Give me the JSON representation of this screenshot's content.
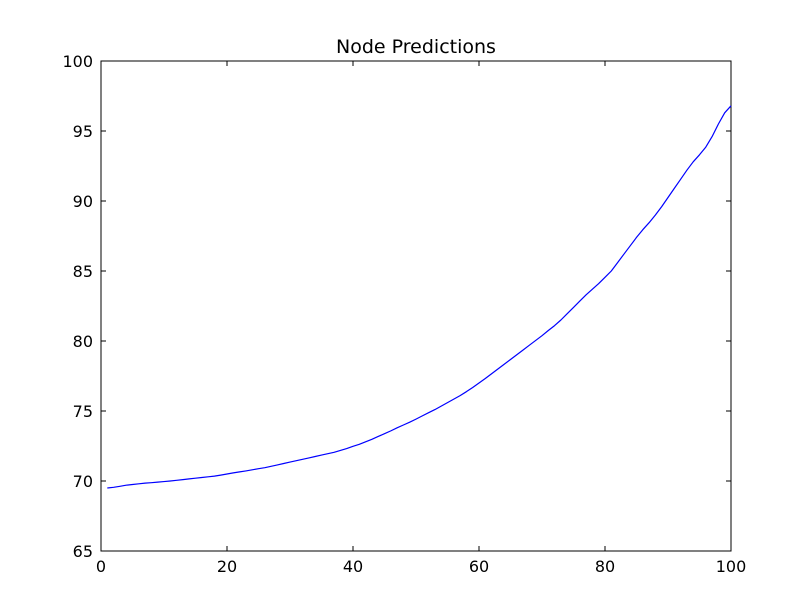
{
  "chart_data": {
    "type": "line",
    "title": "Node Predictions",
    "xlabel": "",
    "ylabel": "",
    "xlim": [
      0,
      100
    ],
    "ylim": [
      65,
      100
    ],
    "xticks": [
      0,
      20,
      40,
      60,
      80,
      100
    ],
    "yticks": [
      65,
      70,
      75,
      80,
      85,
      90,
      95,
      100
    ],
    "grid": false,
    "legend": "none",
    "series": [
      {
        "color": "#0000ff",
        "x": [
          1,
          2,
          3,
          4,
          5,
          6,
          7,
          8,
          9,
          10,
          11,
          12,
          13,
          14,
          15,
          16,
          17,
          18,
          19,
          20,
          21,
          22,
          23,
          24,
          25,
          26,
          27,
          28,
          29,
          30,
          31,
          32,
          33,
          34,
          35,
          36,
          37,
          38,
          39,
          40,
          41,
          42,
          43,
          44,
          45,
          46,
          47,
          48,
          49,
          50,
          51,
          52,
          53,
          54,
          55,
          56,
          57,
          58,
          59,
          60,
          61,
          62,
          63,
          64,
          65,
          66,
          67,
          68,
          69,
          70,
          71,
          72,
          73,
          74,
          75,
          76,
          77,
          78,
          79,
          80,
          81,
          82,
          83,
          84,
          85,
          86,
          87,
          88,
          89,
          90,
          91,
          92,
          93,
          94,
          95,
          96,
          97,
          98,
          99,
          100
        ],
        "y": [
          69.5,
          69.55,
          69.62,
          69.7,
          69.75,
          69.8,
          69.85,
          69.88,
          69.92,
          69.96,
          70.0,
          70.05,
          70.1,
          70.15,
          70.2,
          70.25,
          70.3,
          70.35,
          70.42,
          70.5,
          70.58,
          70.65,
          70.72,
          70.8,
          70.88,
          70.95,
          71.05,
          71.15,
          71.25,
          71.35,
          71.45,
          71.55,
          71.65,
          71.75,
          71.85,
          71.95,
          72.05,
          72.18,
          72.32,
          72.48,
          72.62,
          72.8,
          72.98,
          73.18,
          73.38,
          73.58,
          73.8,
          74.0,
          74.2,
          74.42,
          74.65,
          74.88,
          75.1,
          75.35,
          75.6,
          75.85,
          76.1,
          76.38,
          76.68,
          77.0,
          77.32,
          77.66,
          78.0,
          78.34,
          78.68,
          79.02,
          79.36,
          79.7,
          80.04,
          80.38,
          80.75,
          81.1,
          81.5,
          81.95,
          82.4,
          82.85,
          83.3,
          83.7,
          84.1,
          84.55,
          85.0,
          85.6,
          86.2,
          86.8,
          87.4,
          87.95,
          88.45,
          89.0,
          89.6,
          90.25,
          90.9,
          91.55,
          92.2,
          92.8,
          93.3,
          93.85,
          94.6,
          95.5,
          96.3,
          96.8
        ]
      }
    ]
  }
}
